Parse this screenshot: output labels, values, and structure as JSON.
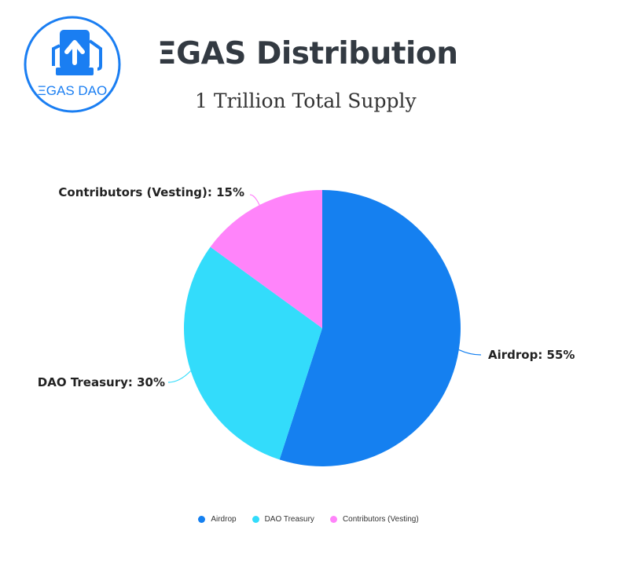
{
  "header": {
    "logo_text": "ΞGAS DAO",
    "title": "ΞGAS Distribution",
    "subtitle": "1 Trillion Total Supply"
  },
  "colors": {
    "brand_blue": "#1a7ef2",
    "airdrop": "#1580f0",
    "dao_treasury": "#33dcfb",
    "contributors": "#ff84fa"
  },
  "chart_data": {
    "type": "pie",
    "title": "ΞGAS Distribution",
    "subtitle": "1 Trillion Total Supply",
    "categories": [
      "Airdrop",
      "DAO Treasury",
      "Contributors (Vesting)"
    ],
    "values": [
      55,
      30,
      15
    ],
    "unit": "%",
    "data_labels": [
      "Airdrop: 55%",
      "DAO Treasury: 30%",
      "Contributors (Vesting): 15%"
    ],
    "legend_position": "bottom"
  }
}
